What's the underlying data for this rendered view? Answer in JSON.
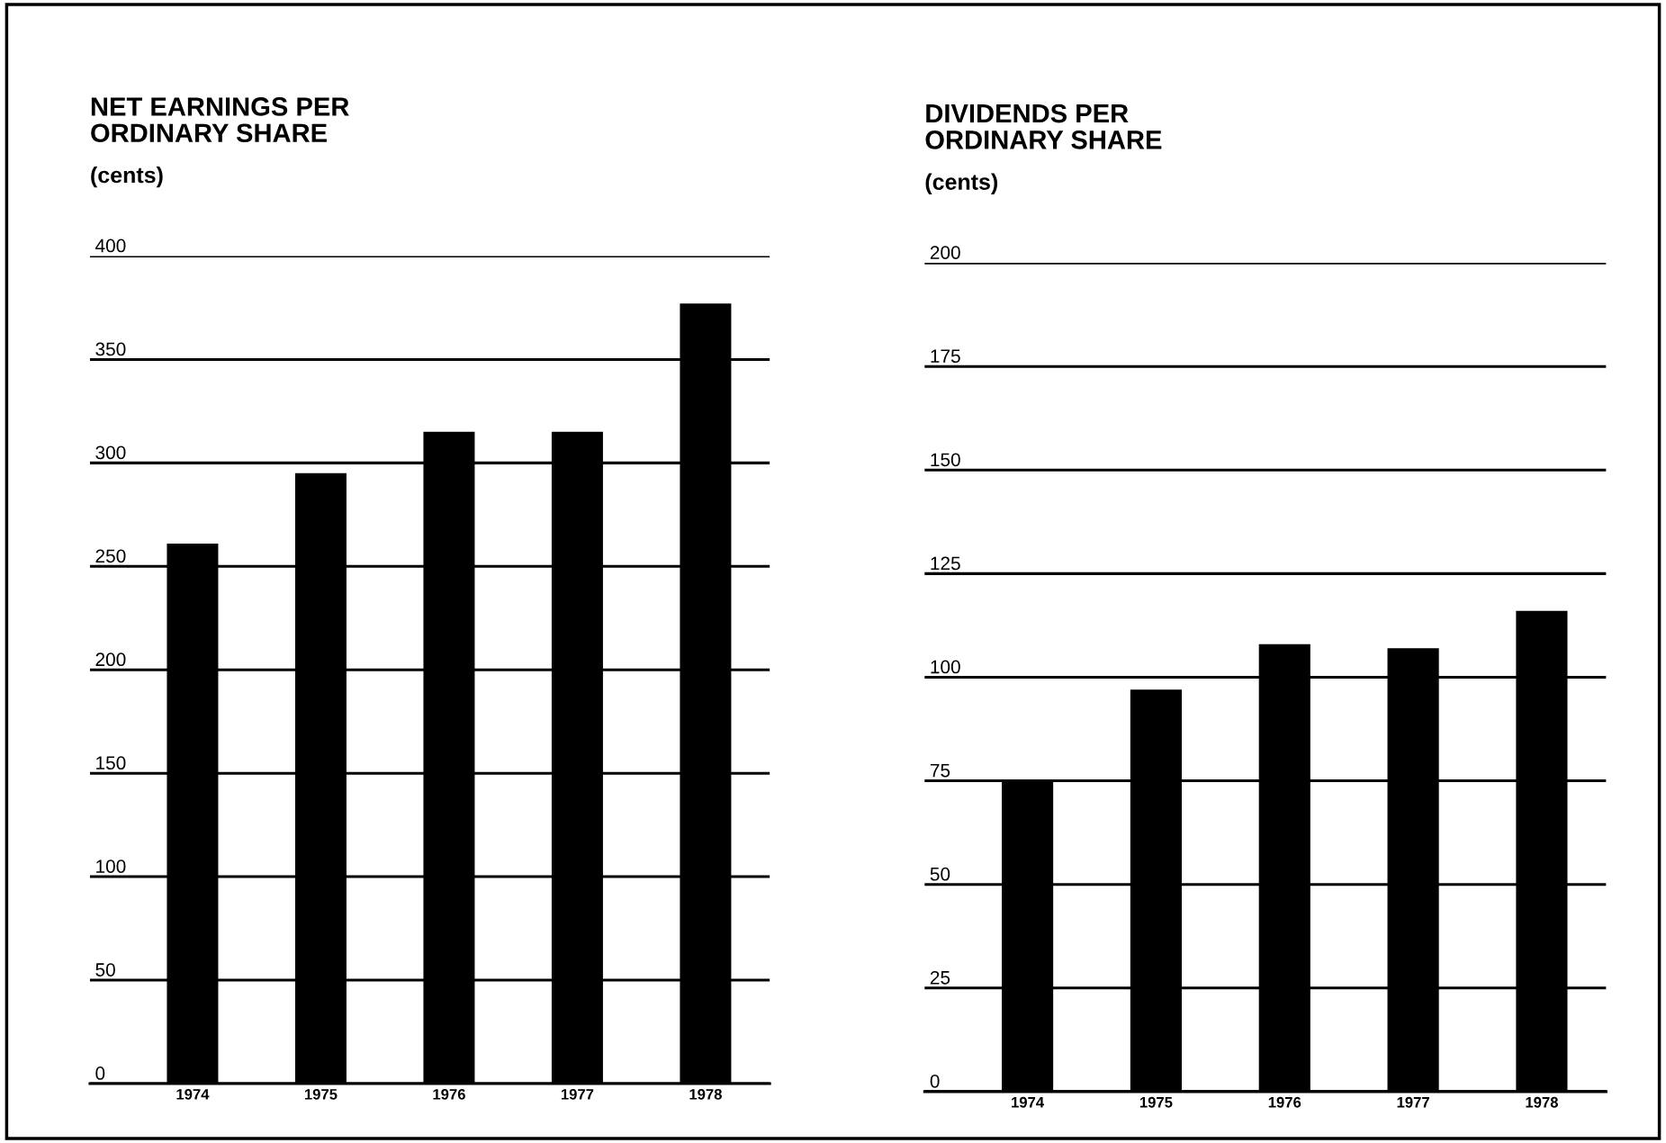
{
  "chart_data": [
    {
      "type": "bar",
      "title": "NET EARNINGS PER\nORDINARY SHARE",
      "subtitle": "(cents)",
      "categories": [
        "1974",
        "1975",
        "1976",
        "1977",
        "1978"
      ],
      "values": [
        261,
        295,
        315,
        315,
        377
      ],
      "color": "#000000",
      "ylim": [
        0,
        400
      ],
      "yticks": [
        0,
        50,
        100,
        150,
        200,
        250,
        300,
        350,
        400
      ],
      "grid": "y"
    },
    {
      "type": "bar",
      "title": "DIVIDENDS PER\nORDINARY SHARE",
      "subtitle": "(cents)",
      "categories": [
        "1974",
        "1975",
        "1976",
        "1977",
        "1978"
      ],
      "values": [
        75,
        97,
        108,
        107,
        116
      ],
      "color": "#000000",
      "ylim": [
        0,
        200
      ],
      "yticks": [
        0,
        25,
        50,
        75,
        100,
        125,
        150,
        175,
        200
      ],
      "grid": "y"
    }
  ]
}
